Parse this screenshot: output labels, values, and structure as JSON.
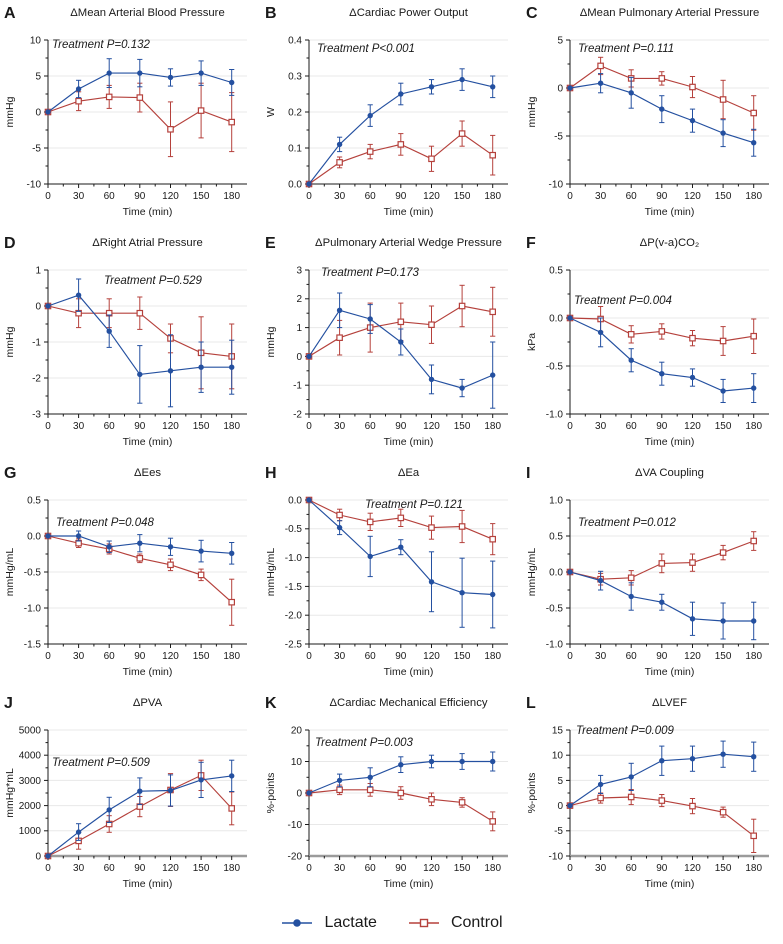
{
  "figure": {
    "x_label": "Time (min)",
    "x_ticks": [
      0,
      30,
      60,
      90,
      120,
      150,
      180
    ],
    "colors": {
      "lactate": "#2450a0",
      "control": "#b5413c",
      "grid": "#e8e8e8",
      "axis": "#1a1a1a",
      "axis_gray": "#9b9b9b"
    },
    "legend": [
      {
        "label": "Lactate",
        "marker": "filled-circle",
        "color": "#2450a0"
      },
      {
        "label": "Control",
        "marker": "open-square",
        "color": "#b5413c"
      }
    ]
  },
  "chart_data": [
    {
      "type": "line",
      "id": "A",
      "title": "ΔMean Arterial Blood Pressure",
      "annotation": "Treatment P=0.132",
      "ylabel": "mmHg",
      "ylim": [
        -10,
        10
      ],
      "ytick_labels": [
        "-10",
        "-5",
        "0",
        "5",
        "10"
      ],
      "x": [
        0,
        30,
        60,
        90,
        120,
        150,
        180
      ],
      "series": [
        {
          "name": "Lactate",
          "values": [
            0,
            3.2,
            5.4,
            5.4,
            4.8,
            5.4,
            4.1
          ],
          "errors": [
            0,
            1.2,
            2.0,
            1.9,
            1.2,
            1.7,
            1.8
          ]
        },
        {
          "name": "Control",
          "values": [
            0,
            1.5,
            2.1,
            2.0,
            -2.4,
            0.2,
            -1.4
          ],
          "errors": [
            0,
            1.3,
            1.6,
            2.0,
            3.8,
            3.8,
            4.1
          ]
        }
      ]
    },
    {
      "type": "line",
      "id": "B",
      "title": "ΔCardiac Power Output",
      "annotation": "Treatment P<0.001",
      "ylabel": "W",
      "ylim": [
        0,
        0.4
      ],
      "ytick_labels": [
        "0.0",
        "0.1",
        "0.2",
        "0.3",
        "0.4"
      ],
      "x": [
        0,
        30,
        60,
        90,
        120,
        150,
        180
      ],
      "series": [
        {
          "name": "Lactate",
          "values": [
            0,
            0.11,
            0.19,
            0.25,
            0.27,
            0.29,
            0.27
          ],
          "errors": [
            0,
            0.02,
            0.03,
            0.03,
            0.02,
            0.03,
            0.03
          ]
        },
        {
          "name": "Control",
          "values": [
            0,
            0.06,
            0.09,
            0.11,
            0.07,
            0.14,
            0.08
          ],
          "errors": [
            0,
            0.015,
            0.02,
            0.03,
            0.035,
            0.035,
            0.055
          ]
        }
      ]
    },
    {
      "type": "line",
      "id": "C",
      "title": "ΔMean Pulmonary Arterial Pressure",
      "annotation": "Treatment P=0.111",
      "ylabel": "mmHg",
      "ylim": [
        -10,
        5
      ],
      "ytick_labels": [
        "-10",
        "-5",
        "0",
        "5"
      ],
      "x": [
        0,
        30,
        60,
        90,
        120,
        150,
        180
      ],
      "series": [
        {
          "name": "Lactate",
          "values": [
            0,
            0.5,
            -0.5,
            -2.2,
            -3.4,
            -4.7,
            -5.7
          ],
          "errors": [
            0,
            1.0,
            1.6,
            1.4,
            1.2,
            1.4,
            1.4
          ]
        },
        {
          "name": "Control",
          "values": [
            0,
            2.3,
            1.0,
            1.0,
            0.1,
            -1.2,
            -2.6
          ],
          "errors": [
            0,
            0.9,
            0.9,
            0.7,
            1.1,
            2.0,
            1.8
          ]
        }
      ]
    },
    {
      "type": "line",
      "id": "D",
      "title": "ΔRight Atrial Pressure",
      "annotation": "Treatment P=0.529",
      "ylabel": "mmHg",
      "ylim": [
        -3,
        1
      ],
      "ytick_labels": [
        "-3",
        "-2",
        "-1",
        "0",
        "1"
      ],
      "x": [
        0,
        30,
        60,
        90,
        120,
        150,
        180
      ],
      "series": [
        {
          "name": "Lactate",
          "values": [
            0,
            0.3,
            -0.7,
            -1.9,
            -1.8,
            -1.7,
            -1.7
          ],
          "errors": [
            0,
            0.45,
            0.45,
            0.8,
            1.0,
            0.7,
            0.75
          ]
        },
        {
          "name": "Control",
          "values": [
            0,
            -0.2,
            -0.2,
            -0.2,
            -0.9,
            -1.3,
            -1.4
          ],
          "errors": [
            0,
            0.4,
            0.4,
            0.45,
            0.4,
            1.0,
            0.9
          ]
        }
      ]
    },
    {
      "type": "line",
      "id": "E",
      "title": "ΔPulmonary Arterial Wedge Pressure",
      "annotation": "Treatment P=0.173",
      "ylabel": "mmHg",
      "ylim": [
        -2,
        3
      ],
      "ytick_labels": [
        "-2",
        "-1",
        "0",
        "1",
        "2",
        "3"
      ],
      "x": [
        0,
        30,
        60,
        90,
        120,
        150,
        180
      ],
      "series": [
        {
          "name": "Lactate",
          "values": [
            0,
            1.6,
            1.3,
            0.5,
            -0.8,
            -1.1,
            -0.65
          ],
          "errors": [
            0,
            0.6,
            0.5,
            0.45,
            0.5,
            0.3,
            1.15
          ]
        },
        {
          "name": "Control",
          "values": [
            0,
            0.65,
            1.0,
            1.2,
            1.1,
            1.75,
            1.55
          ],
          "errors": [
            0,
            0.6,
            0.85,
            0.65,
            0.65,
            0.72,
            0.85
          ]
        }
      ]
    },
    {
      "type": "line",
      "id": "F",
      "title": "ΔP(v-a)CO₂",
      "annotation": "Treatment P=0.004",
      "ylabel": "kPa",
      "ylim": [
        -1,
        0.5
      ],
      "ytick_labels": [
        "-1.0",
        "-0.5",
        "0.0",
        "0.5"
      ],
      "x": [
        0,
        30,
        60,
        90,
        120,
        150,
        180
      ],
      "series": [
        {
          "name": "Lactate",
          "values": [
            0,
            -0.15,
            -0.44,
            -0.58,
            -0.62,
            -0.76,
            -0.73
          ],
          "errors": [
            0,
            0.15,
            0.12,
            0.12,
            0.09,
            0.12,
            0.15
          ]
        },
        {
          "name": "Control",
          "values": [
            0,
            -0.01,
            -0.17,
            -0.14,
            -0.21,
            -0.24,
            -0.19
          ],
          "errors": [
            0,
            0.13,
            0.09,
            0.08,
            0.08,
            0.15,
            0.18
          ]
        }
      ]
    },
    {
      "type": "line",
      "id": "G",
      "title": "ΔEes",
      "annotation": "Treatment P=0.048",
      "ylabel": "mmHg/mL",
      "ylim": [
        -1.5,
        0.5
      ],
      "ytick_labels": [
        "-1.5",
        "-1.0",
        "-0.5",
        "0.0",
        "0.5"
      ],
      "x": [
        0,
        30,
        60,
        90,
        120,
        150,
        180
      ],
      "series": [
        {
          "name": "Lactate",
          "values": [
            0,
            0.0,
            -0.15,
            -0.1,
            -0.15,
            -0.21,
            -0.24
          ],
          "errors": [
            0,
            0.07,
            0.08,
            0.12,
            0.12,
            0.15,
            0.15
          ]
        },
        {
          "name": "Control",
          "values": [
            0,
            -0.1,
            -0.18,
            -0.31,
            -0.4,
            -0.54,
            -0.92
          ],
          "errors": [
            0,
            0.06,
            0.07,
            0.06,
            0.08,
            0.08,
            0.32
          ]
        }
      ]
    },
    {
      "type": "line",
      "id": "H",
      "title": "ΔEa",
      "annotation": "Treatment P=0.121",
      "ylabel": "mmHg/mL",
      "ylim": [
        -2.5,
        0
      ],
      "ytick_labels": [
        "-2.5",
        "-2.0",
        "-1.5",
        "-1.0",
        "-0.5",
        "0.0"
      ],
      "x": [
        0,
        30,
        60,
        90,
        120,
        150,
        180
      ],
      "series": [
        {
          "name": "Lactate",
          "values": [
            0,
            -0.48,
            -0.98,
            -0.82,
            -1.42,
            -1.61,
            -1.64
          ],
          "errors": [
            0,
            0.12,
            0.35,
            0.13,
            0.52,
            0.6,
            0.58
          ]
        },
        {
          "name": "Control",
          "values": [
            0,
            -0.26,
            -0.38,
            -0.31,
            -0.48,
            -0.46,
            -0.68
          ],
          "errors": [
            0,
            0.1,
            0.15,
            0.15,
            0.2,
            0.28,
            0.27
          ]
        }
      ]
    },
    {
      "type": "line",
      "id": "I",
      "title": "ΔVA Coupling",
      "annotation": "Treatment P=0.012",
      "ylabel": "mmHg/mL",
      "ylim": [
        -1,
        1
      ],
      "ytick_labels": [
        "-1.0",
        "-0.5",
        "0.0",
        "0.5",
        "1.0"
      ],
      "x": [
        0,
        30,
        60,
        90,
        120,
        150,
        180
      ],
      "series": [
        {
          "name": "Lactate",
          "values": [
            0,
            -0.12,
            -0.34,
            -0.42,
            -0.65,
            -0.68,
            -0.68
          ],
          "errors": [
            0,
            0.13,
            0.19,
            0.11,
            0.23,
            0.25,
            0.26
          ]
        },
        {
          "name": "Control",
          "values": [
            0,
            -0.1,
            -0.08,
            0.12,
            0.13,
            0.27,
            0.43
          ],
          "errors": [
            0,
            0.08,
            0.1,
            0.13,
            0.12,
            0.1,
            0.13
          ]
        }
      ]
    },
    {
      "type": "line",
      "id": "J",
      "title": "ΔPVA",
      "annotation": "Treatment P=0.509",
      "ylabel": "mmHg*mL",
      "ylim": [
        0,
        5000
      ],
      "ytick_labels": [
        "0",
        "1000",
        "2000",
        "3000",
        "4000",
        "5000"
      ],
      "x": [
        0,
        30,
        60,
        90,
        120,
        150,
        180
      ],
      "series": [
        {
          "name": "Lactate",
          "values": [
            0,
            950,
            1830,
            2570,
            2600,
            3020,
            3180
          ],
          "errors": [
            0,
            330,
            500,
            530,
            620,
            700,
            620
          ]
        },
        {
          "name": "Control",
          "values": [
            0,
            600,
            1270,
            1960,
            2620,
            3200,
            1890
          ],
          "errors": [
            0,
            330,
            330,
            400,
            650,
            600,
            650
          ]
        }
      ]
    },
    {
      "type": "line",
      "id": "K",
      "title": "ΔCardiac Mechanical Efficiency",
      "annotation": "Treatment P=0.003",
      "ylabel": "%-points",
      "ylim": [
        -20,
        20
      ],
      "ytick_labels": [
        "-20",
        "-10",
        "0",
        "10",
        "20"
      ],
      "x": [
        0,
        30,
        60,
        90,
        120,
        150,
        180
      ],
      "series": [
        {
          "name": "Lactate",
          "values": [
            0,
            4,
            5,
            9,
            10,
            10,
            10
          ],
          "errors": [
            0,
            2,
            3,
            2.5,
            2,
            2.5,
            3
          ]
        },
        {
          "name": "Control",
          "values": [
            0,
            1,
            1,
            0,
            -2,
            -3,
            -9
          ],
          "errors": [
            0,
            1.5,
            2,
            2,
            2,
            1.5,
            3
          ]
        }
      ]
    },
    {
      "type": "line",
      "id": "L",
      "title": "ΔLVEF",
      "annotation": "Treatment P=0.009",
      "ylabel": "%-points",
      "ylim": [
        -10,
        15
      ],
      "ytick_labels": [
        "-10",
        "-5",
        "0",
        "5",
        "10",
        "15"
      ],
      "x": [
        0,
        30,
        60,
        90,
        120,
        150,
        180
      ],
      "series": [
        {
          "name": "Lactate",
          "values": [
            0,
            4.2,
            5.7,
            8.9,
            9.3,
            10.2,
            9.7
          ],
          "errors": [
            0,
            1.8,
            2.7,
            2.9,
            2.5,
            2.6,
            2.9
          ]
        },
        {
          "name": "Control",
          "values": [
            0,
            1.5,
            1.7,
            1.0,
            -0.1,
            -1.3,
            -6.0
          ],
          "errors": [
            0,
            1.0,
            1.5,
            1.2,
            1.5,
            1.0,
            3.3
          ]
        }
      ]
    }
  ]
}
